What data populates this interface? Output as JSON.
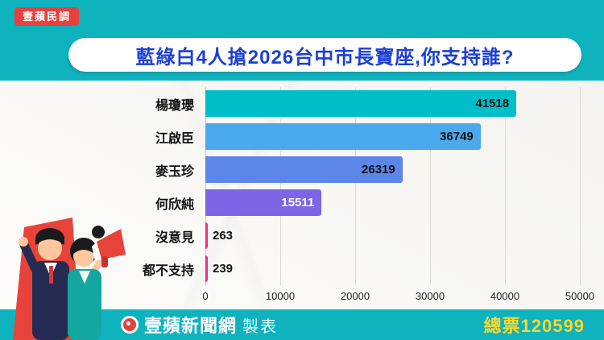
{
  "badge": {
    "label": "壹蘋民調"
  },
  "title": "藍綠白4人搶2026台中市長寶座,你支持誰?",
  "chart_data": {
    "type": "bar",
    "orientation": "horizontal",
    "title": "藍綠白4人搶2026台中市長寶座,你支持誰?",
    "categories": [
      "楊瓊瓔",
      "江啟臣",
      "麥玉珍",
      "何欣純",
      "沒意見",
      "都不支持"
    ],
    "values": [
      41518,
      36749,
      26319,
      15511,
      263,
      239
    ],
    "bar_colors": [
      "#00bec8",
      "#4aa9ec",
      "#5c86ea",
      "#7c66e6",
      "#ef2f7e",
      "#ef2f7e"
    ],
    "value_inside": [
      true,
      true,
      true,
      true,
      false,
      false
    ],
    "value_colors": [
      "#111111",
      "#111111",
      "#111111",
      "#ffffff",
      "#111111",
      "#111111"
    ],
    "xlim": [
      0,
      50000
    ],
    "x_ticks": [
      0,
      10000,
      20000,
      30000,
      40000,
      50000
    ],
    "grid": true,
    "legend": false,
    "total_votes": 120599
  },
  "footer": {
    "brand": "壹蘋新聞網",
    "brand_suffix": "製表",
    "total_label": "總票120599"
  },
  "colors": {
    "teal_band": "#0fb3be",
    "badge_red": "#e8403a",
    "title_blue": "#1c3fd6",
    "total_yellow": "#ffd62b",
    "paper": "#f8f7f3"
  }
}
